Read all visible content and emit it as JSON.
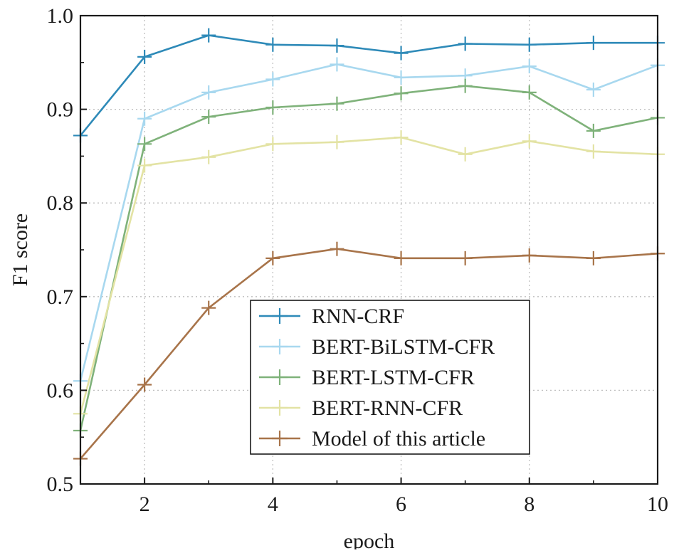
{
  "chart_data": {
    "type": "line",
    "title": "",
    "xlabel": "epoch",
    "ylabel": "F1 score",
    "xlim": [
      1,
      10
    ],
    "ylim": [
      0.5,
      1.0
    ],
    "x_ticks": [
      2,
      4,
      6,
      8,
      10
    ],
    "y_ticks": [
      0.5,
      0.6,
      0.7,
      0.8,
      0.9,
      1.0
    ],
    "x_tick_labels": [
      "2",
      "4",
      "6",
      "8",
      "10"
    ],
    "y_tick_labels": [
      "0.5",
      "0.6",
      "0.7",
      "0.8",
      "0.9",
      "1.0"
    ],
    "grid": "dotted vertical and horizontal",
    "legend_position": "center-right",
    "x": [
      1,
      2,
      3,
      4,
      5,
      6,
      7,
      8,
      9,
      10
    ],
    "series": [
      {
        "name": "RNN-CRF",
        "color": "#2e8ab8",
        "values": [
          0.872,
          0.956,
          0.979,
          0.969,
          0.968,
          0.96,
          0.97,
          0.969,
          0.971,
          0.971
        ]
      },
      {
        "name": "BERT-BiLSTM-CFR",
        "color": "#a8d8ef",
        "values": [
          0.61,
          0.89,
          0.918,
          0.932,
          0.948,
          0.934,
          0.936,
          0.946,
          0.921,
          0.947
        ]
      },
      {
        "name": "BERT-LSTM-CFR",
        "color": "#7fb27a",
        "values": [
          0.557,
          0.863,
          0.892,
          0.902,
          0.906,
          0.917,
          0.925,
          0.918,
          0.877,
          0.891
        ]
      },
      {
        "name": "BERT-RNN-CFR",
        "color": "#e3e3a4",
        "values": [
          0.575,
          0.84,
          0.849,
          0.863,
          0.865,
          0.87,
          0.852,
          0.866,
          0.855,
          0.852
        ]
      },
      {
        "name": "Model of this article",
        "color": "#a8744a",
        "values": [
          0.527,
          0.606,
          0.688,
          0.741,
          0.751,
          0.741,
          0.741,
          0.744,
          0.741,
          0.746
        ]
      }
    ]
  }
}
